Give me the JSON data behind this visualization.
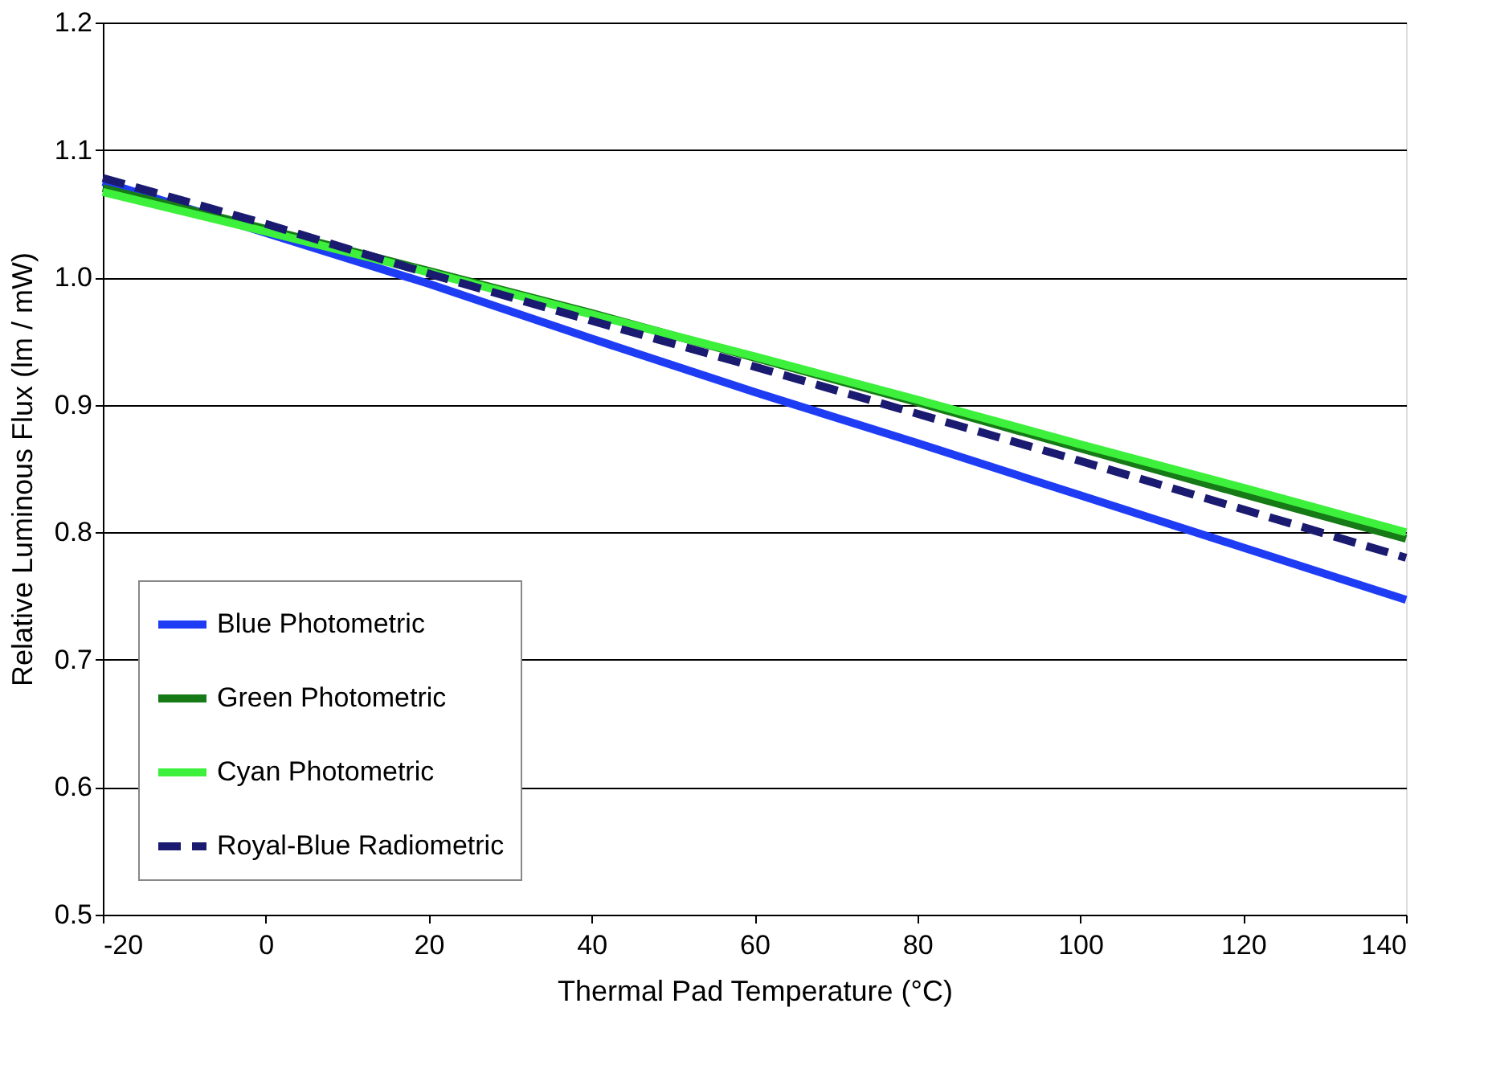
{
  "chart_data": {
    "type": "line",
    "xlabel": "Thermal Pad Temperature (°C)",
    "ylabel": "Relative Luminous Flux (lm / mW)",
    "x": [
      -20,
      0,
      20,
      40,
      60,
      80,
      100,
      120,
      140
    ],
    "xlim": [
      -20,
      140
    ],
    "xticks": [
      -20,
      0,
      20,
      40,
      60,
      80,
      100,
      120,
      140
    ],
    "ylim": [
      0.5,
      1.2
    ],
    "yticks": [
      {
        "value": 0.5,
        "label": "0.5"
      },
      {
        "value": 0.6,
        "label": "0.6"
      },
      {
        "value": 0.7,
        "label": "0.7"
      },
      {
        "value": 0.8,
        "label": "0.8"
      },
      {
        "value": 0.9,
        "label": "0.9"
      },
      {
        "value": 1.0,
        "label": "1.0"
      },
      {
        "value": 1.1,
        "label": "1.1"
      },
      {
        "value": 1.2,
        "label": "1.2"
      }
    ],
    "grid": "y",
    "legend": "bottom left",
    "marker": "none",
    "series": [
      {
        "name": "Blue Photometric",
        "color": "#1f3cf5",
        "line_style": "solid",
        "values": [
          1.075,
          1.035,
          0.995,
          0.952,
          0.91,
          0.87,
          0.829,
          0.788,
          0.747
        ]
      },
      {
        "name": "Green Photometric",
        "color": "#167a16",
        "line_style": "solid",
        "values": [
          1.07,
          1.038,
          1.005,
          0.972,
          0.937,
          0.902,
          0.866,
          0.83,
          0.795
        ]
      },
      {
        "name": "Cyan Photometric",
        "color": "#3cf03c",
        "line_style": "solid",
        "values": [
          1.067,
          1.036,
          1.004,
          0.971,
          0.938,
          0.904,
          0.869,
          0.835,
          0.8
        ]
      },
      {
        "name": "Royal-Blue Radiometric",
        "color": "#1a1a70",
        "line_style": "dashed",
        "values": [
          1.078,
          1.042,
          1.003,
          0.966,
          0.93,
          0.893,
          0.856,
          0.818,
          0.78
        ]
      }
    ]
  }
}
